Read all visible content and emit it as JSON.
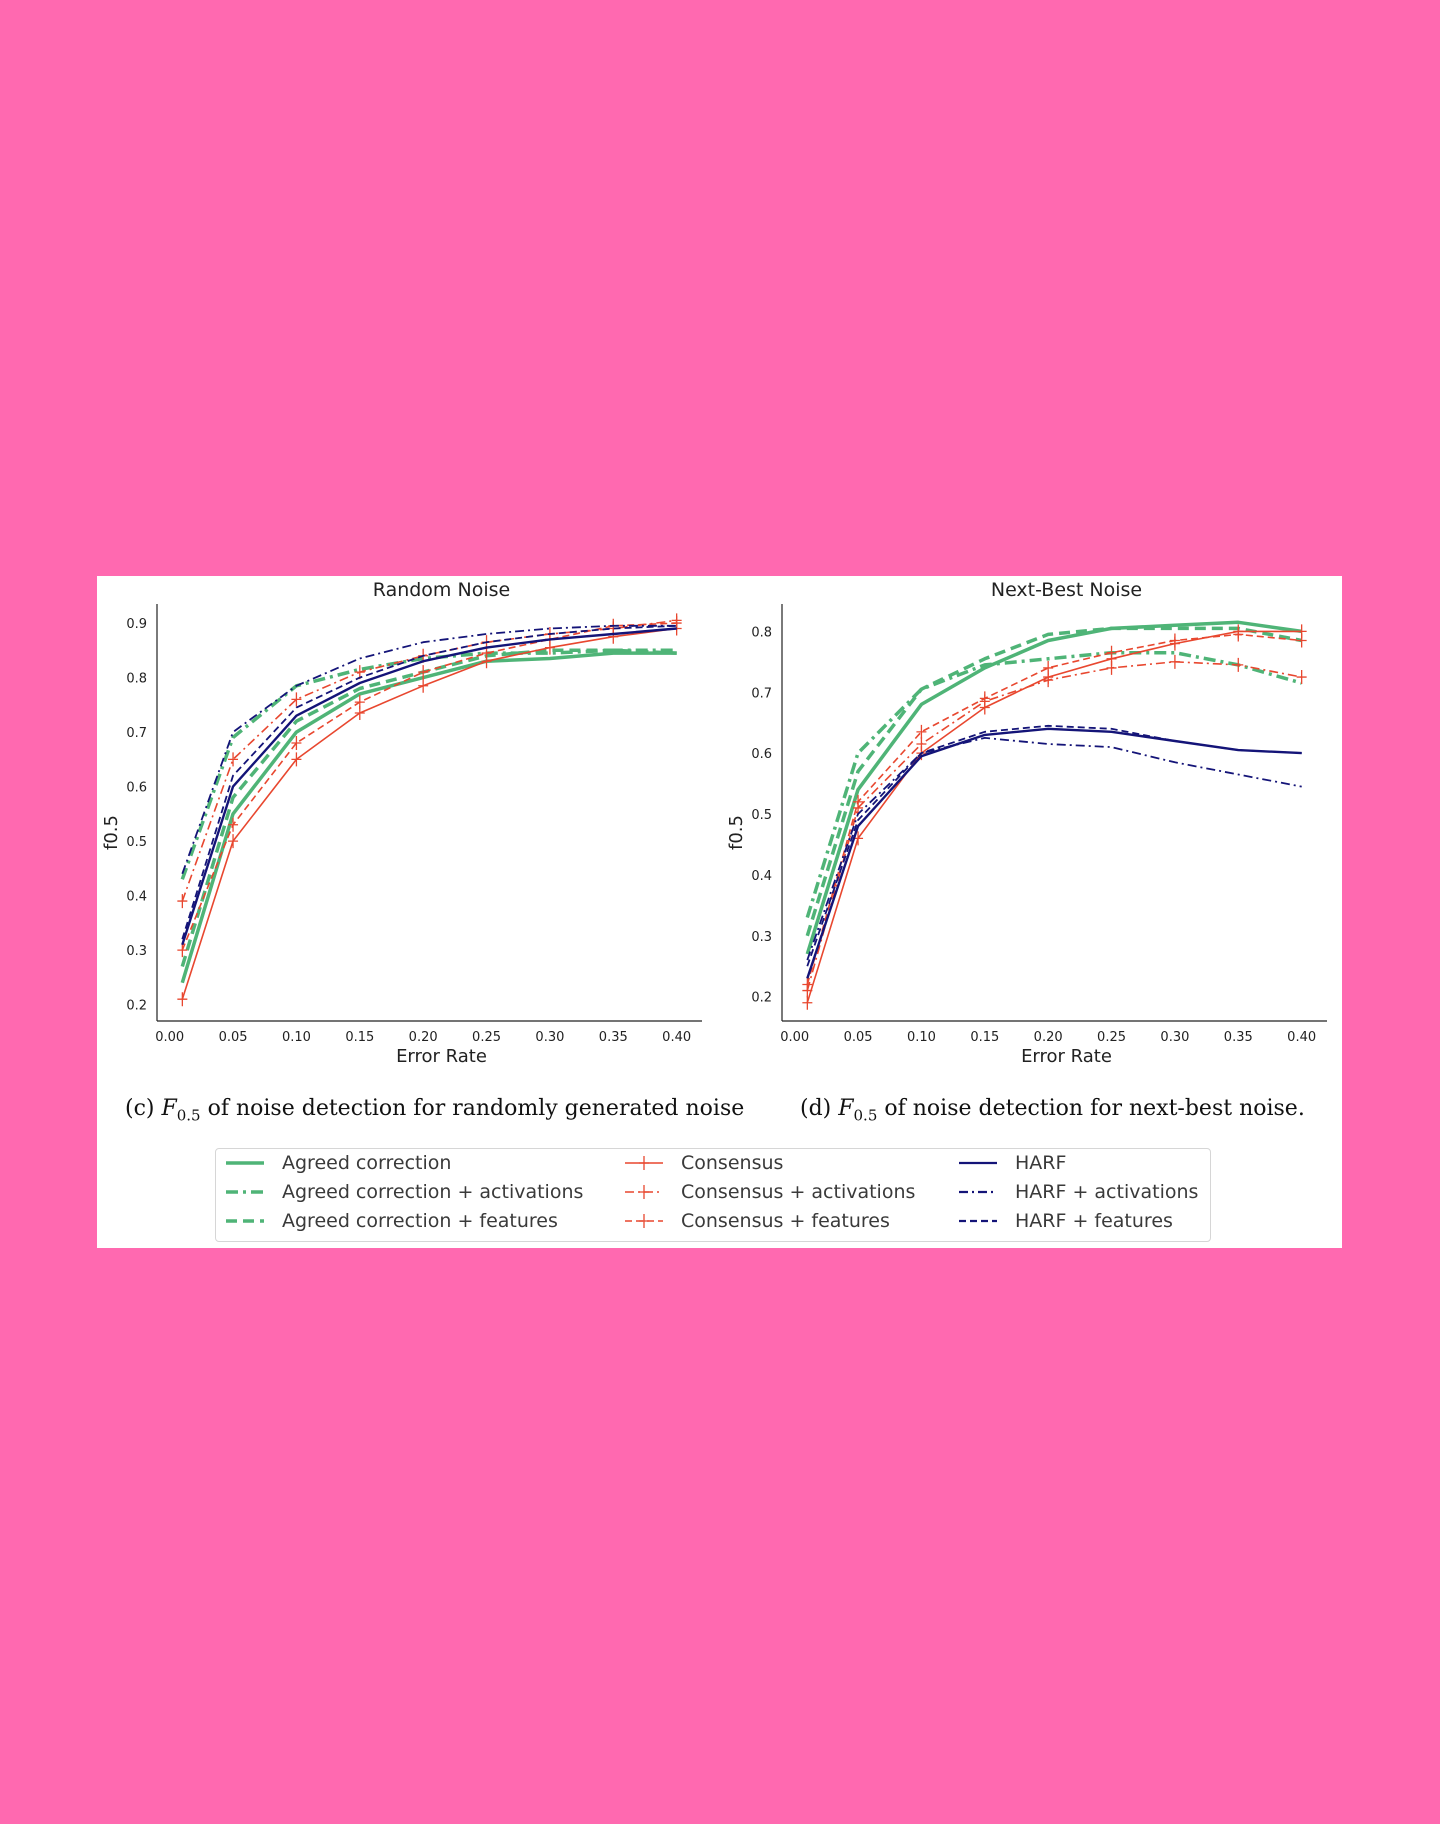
{
  "colors": {
    "agreed": "#4fb477",
    "consensus": "#e8472f",
    "harf": "#141478",
    "axis": "#222222",
    "page": "#ff69b0"
  },
  "chart_data": [
    {
      "type": "line",
      "title": "Random Noise",
      "xlabel": "Error Rate",
      "ylabel": "f0.5",
      "xlim": [
        -0.01,
        0.42
      ],
      "ylim": [
        0.17,
        0.935
      ],
      "xticks": [
        0.0,
        0.05,
        0.1,
        0.15,
        0.2,
        0.25,
        0.3,
        0.35,
        0.4
      ],
      "xtick_labels": [
        "0.00",
        "0.05",
        "0.10",
        "0.15",
        "0.20",
        "0.25",
        "0.30",
        "0.35",
        "0.40"
      ],
      "yticks": [
        0.2,
        0.3,
        0.4,
        0.5,
        0.6,
        0.7,
        0.8,
        0.9
      ],
      "ytick_labels": [
        "0.2",
        "0.3",
        "0.4",
        "0.5",
        "0.6",
        "0.7",
        "0.8",
        "0.9"
      ],
      "grid": false,
      "x": [
        0.01,
        0.05,
        0.1,
        0.15,
        0.2,
        0.25,
        0.3,
        0.35,
        0.4
      ],
      "series": [
        {
          "name": "Agreed correction",
          "color": "agreed",
          "style": "solid",
          "width": 3.5,
          "marker": "none",
          "values": [
            0.24,
            0.55,
            0.7,
            0.77,
            0.8,
            0.83,
            0.835,
            0.845,
            0.845
          ]
        },
        {
          "name": "Agreed correction + activations",
          "color": "agreed",
          "style": "dashdot",
          "width": 3.5,
          "marker": "none",
          "values": [
            0.43,
            0.69,
            0.785,
            0.815,
            0.835,
            0.845,
            0.845,
            0.85,
            0.85
          ]
        },
        {
          "name": "Agreed correction + features",
          "color": "agreed",
          "style": "dashed",
          "width": 3.5,
          "marker": "none",
          "values": [
            0.27,
            0.58,
            0.72,
            0.78,
            0.81,
            0.84,
            0.85,
            0.85,
            0.845
          ]
        },
        {
          "name": "Consensus",
          "color": "consensus",
          "style": "solid",
          "width": 1.6,
          "marker": "plus",
          "values": [
            0.21,
            0.5,
            0.65,
            0.735,
            0.785,
            0.83,
            0.855,
            0.875,
            0.89
          ]
        },
        {
          "name": "Consensus + activations",
          "color": "consensus",
          "style": "dashdot",
          "width": 1.6,
          "marker": "plus",
          "values": [
            0.39,
            0.65,
            0.76,
            0.81,
            0.84,
            0.865,
            0.88,
            0.89,
            0.905
          ]
        },
        {
          "name": "Consensus + features",
          "color": "consensus",
          "style": "dashed",
          "width": 1.6,
          "marker": "plus",
          "values": [
            0.3,
            0.53,
            0.68,
            0.755,
            0.81,
            0.845,
            0.87,
            0.895,
            0.9
          ]
        },
        {
          "name": "HARF",
          "color": "harf",
          "style": "solid",
          "width": 2.4,
          "marker": "none",
          "values": [
            0.31,
            0.6,
            0.73,
            0.79,
            0.83,
            0.855,
            0.87,
            0.88,
            0.89
          ]
        },
        {
          "name": "HARF + activations",
          "color": "harf",
          "style": "dashdot",
          "width": 1.8,
          "marker": "none",
          "values": [
            0.44,
            0.7,
            0.785,
            0.835,
            0.865,
            0.88,
            0.89,
            0.895,
            0.895
          ]
        },
        {
          "name": "HARF + features",
          "color": "harf",
          "style": "dashed",
          "width": 1.8,
          "marker": "none",
          "values": [
            0.32,
            0.62,
            0.745,
            0.8,
            0.84,
            0.865,
            0.88,
            0.89,
            0.895
          ]
        }
      ]
    },
    {
      "type": "line",
      "title": "Next-Best Noise",
      "xlabel": "Error Rate",
      "ylabel": "f0.5",
      "xlim": [
        -0.01,
        0.42
      ],
      "ylim": [
        0.16,
        0.845
      ],
      "xticks": [
        0.0,
        0.05,
        0.1,
        0.15,
        0.2,
        0.25,
        0.3,
        0.35,
        0.4
      ],
      "xtick_labels": [
        "0.00",
        "0.05",
        "0.10",
        "0.15",
        "0.20",
        "0.25",
        "0.30",
        "0.35",
        "0.40"
      ],
      "yticks": [
        0.2,
        0.3,
        0.4,
        0.5,
        0.6,
        0.7,
        0.8
      ],
      "ytick_labels": [
        "0.2",
        "0.3",
        "0.4",
        "0.5",
        "0.6",
        "0.7",
        "0.8"
      ],
      "grid": false,
      "x": [
        0.01,
        0.05,
        0.1,
        0.15,
        0.2,
        0.25,
        0.3,
        0.35,
        0.4
      ],
      "series": [
        {
          "name": "Agreed correction",
          "color": "agreed",
          "style": "solid",
          "width": 3.5,
          "marker": "none",
          "values": [
            0.27,
            0.54,
            0.68,
            0.74,
            0.785,
            0.805,
            0.81,
            0.815,
            0.8
          ]
        },
        {
          "name": "Agreed correction + activations",
          "color": "agreed",
          "style": "dashdot",
          "width": 3.5,
          "marker": "none",
          "values": [
            0.33,
            0.6,
            0.705,
            0.745,
            0.755,
            0.765,
            0.765,
            0.745,
            0.715
          ]
        },
        {
          "name": "Agreed correction + features",
          "color": "agreed",
          "style": "dashed",
          "width": 3.5,
          "marker": "none",
          "values": [
            0.3,
            0.57,
            0.705,
            0.755,
            0.795,
            0.805,
            0.805,
            0.805,
            0.785
          ]
        },
        {
          "name": "Consensus",
          "color": "consensus",
          "style": "solid",
          "width": 1.6,
          "marker": "plus",
          "values": [
            0.19,
            0.46,
            0.6,
            0.675,
            0.725,
            0.755,
            0.78,
            0.8,
            0.8
          ]
        },
        {
          "name": "Consensus + activations",
          "color": "consensus",
          "style": "dashdot",
          "width": 1.6,
          "marker": "plus",
          "values": [
            0.21,
            0.51,
            0.615,
            0.685,
            0.72,
            0.74,
            0.75,
            0.745,
            0.725
          ]
        },
        {
          "name": "Consensus + features",
          "color": "consensus",
          "style": "dashed",
          "width": 1.6,
          "marker": "plus",
          "values": [
            0.22,
            0.52,
            0.635,
            0.69,
            0.74,
            0.765,
            0.785,
            0.795,
            0.785
          ]
        },
        {
          "name": "HARF",
          "color": "harf",
          "style": "solid",
          "width": 2.4,
          "marker": "none",
          "values": [
            0.23,
            0.48,
            0.595,
            0.63,
            0.64,
            0.635,
            0.62,
            0.605,
            0.6
          ]
        },
        {
          "name": "HARF + activations",
          "color": "harf",
          "style": "dashdot",
          "width": 1.8,
          "marker": "none",
          "values": [
            0.26,
            0.5,
            0.6,
            0.625,
            0.615,
            0.61,
            0.585,
            0.565,
            0.545
          ]
        },
        {
          "name": "HARF + features",
          "color": "harf",
          "style": "dashed",
          "width": 1.8,
          "marker": "none",
          "values": [
            0.25,
            0.49,
            0.6,
            0.635,
            0.645,
            0.64,
            0.62,
            0.605,
            0.6
          ]
        }
      ]
    }
  ],
  "captions": {
    "left": {
      "prefix": "(c) ",
      "symbol": "F",
      "subscript": "0.5",
      "text": " of noise detection for randomly generated noise"
    },
    "right": {
      "prefix": "(d) ",
      "symbol": "F",
      "subscript": "0.5",
      "text": " of noise detection for next-best noise."
    }
  },
  "legend": {
    "items": [
      {
        "label": "Agreed correction",
        "color": "agreed",
        "style": "solid",
        "marker": "none"
      },
      {
        "label": "Agreed correction + activations",
        "color": "agreed",
        "style": "dashdot",
        "marker": "none"
      },
      {
        "label": "Agreed correction + features",
        "color": "agreed",
        "style": "dashed",
        "marker": "none"
      },
      {
        "label": "Consensus",
        "color": "consensus",
        "style": "solid",
        "marker": "plus"
      },
      {
        "label": "Consensus + activations",
        "color": "consensus",
        "style": "dashdot",
        "marker": "plus"
      },
      {
        "label": "Consensus + features",
        "color": "consensus",
        "style": "dashed",
        "marker": "plus"
      },
      {
        "label": "HARF",
        "color": "harf",
        "style": "solid",
        "marker": "none"
      },
      {
        "label": "HARF + activations",
        "color": "harf",
        "style": "dashdot",
        "marker": "none"
      },
      {
        "label": "HARF + features",
        "color": "harf",
        "style": "dashed",
        "marker": "none"
      }
    ]
  }
}
